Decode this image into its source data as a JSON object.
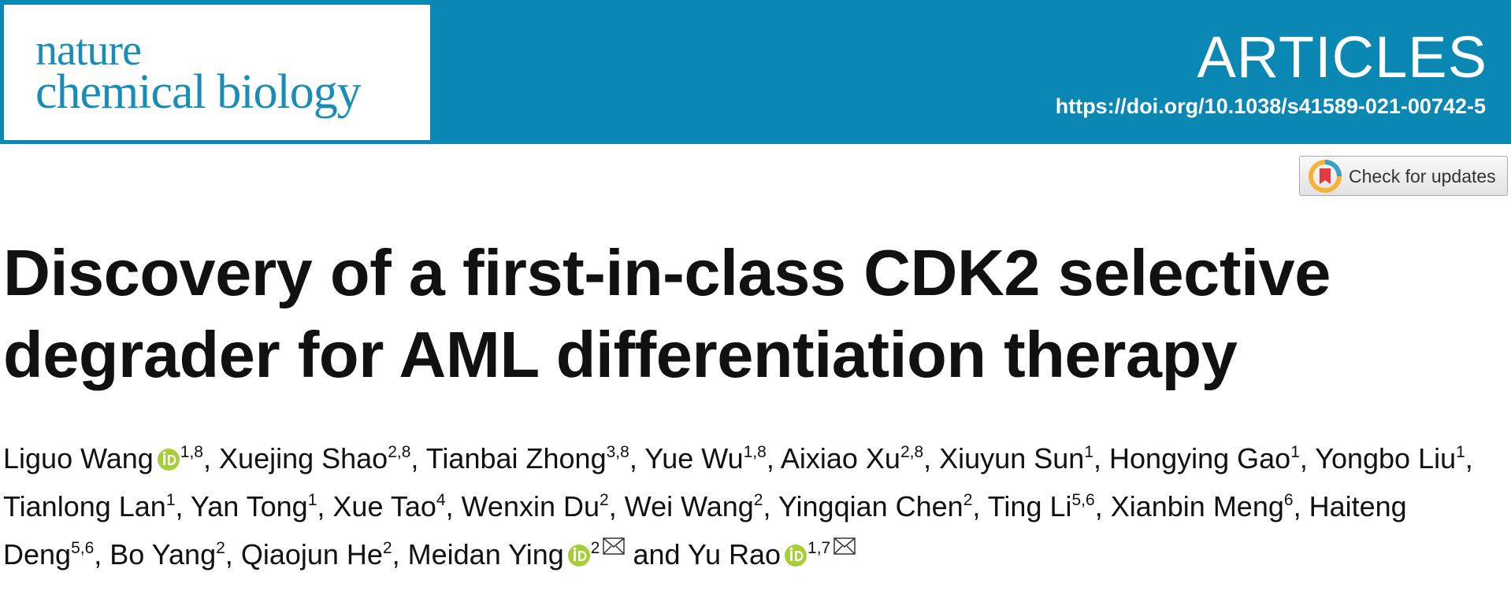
{
  "header": {
    "journal": [
      "nature",
      "chemical biology"
    ],
    "section": "ARTICLES",
    "doi": "https://doi.org/10.1038/s41589-021-00742-5"
  },
  "update_button": {
    "label": "Check for updates"
  },
  "article": {
    "title": [
      "Discovery of a first-in-class CDK2 selective",
      "degrader for AML differentiation therapy"
    ],
    "authors": [
      {
        "name": "Liguo Wang",
        "orcid": true,
        "sup": "1,8",
        "after": ","
      },
      {
        "name": "Xuejing Shao",
        "sup": "2,8",
        "after": ","
      },
      {
        "name": "Tianbai Zhong",
        "sup": "3,8",
        "after": ","
      },
      {
        "name": "Yue Wu",
        "sup": "1,8",
        "after": ","
      },
      {
        "name": "Aixiao Xu",
        "sup": "2,8",
        "after": ","
      },
      {
        "name": "Xiuyun Sun",
        "sup": "1",
        "after": ","
      },
      {
        "name": "Hongying Gao",
        "sup": "1",
        "after": ","
      },
      {
        "name": "Yongbo Liu",
        "sup": "1",
        "after": ","
      },
      {
        "name": "Tianlong Lan",
        "sup": "1",
        "after": ","
      },
      {
        "name": "Yan Tong",
        "sup": "1",
        "after": ","
      },
      {
        "name": "Xue Tao",
        "sup": "4",
        "after": ","
      },
      {
        "name": "Wenxin Du",
        "sup": "2",
        "after": ","
      },
      {
        "name": "Wei Wang",
        "sup": "2",
        "after": ","
      },
      {
        "name": "Yingqian Chen",
        "sup": "2",
        "after": ","
      },
      {
        "name": "Ting Li",
        "sup": "5,6",
        "after": ","
      },
      {
        "name": "Xianbin Meng",
        "sup": "6",
        "after": ","
      },
      {
        "name": "Haiteng Deng",
        "sup": "5,6",
        "after": ","
      },
      {
        "name": "Bo Yang",
        "sup": "2",
        "after": ","
      },
      {
        "name": "Qiaojun He",
        "sup": "2",
        "after": ","
      },
      {
        "name": "Meidan Ying",
        "orcid": true,
        "sup": "2",
        "corresponding": true
      },
      {
        "before": "and",
        "name": "Yu Rao",
        "orcid": true,
        "sup": "1,7",
        "corresponding": true
      }
    ]
  }
}
